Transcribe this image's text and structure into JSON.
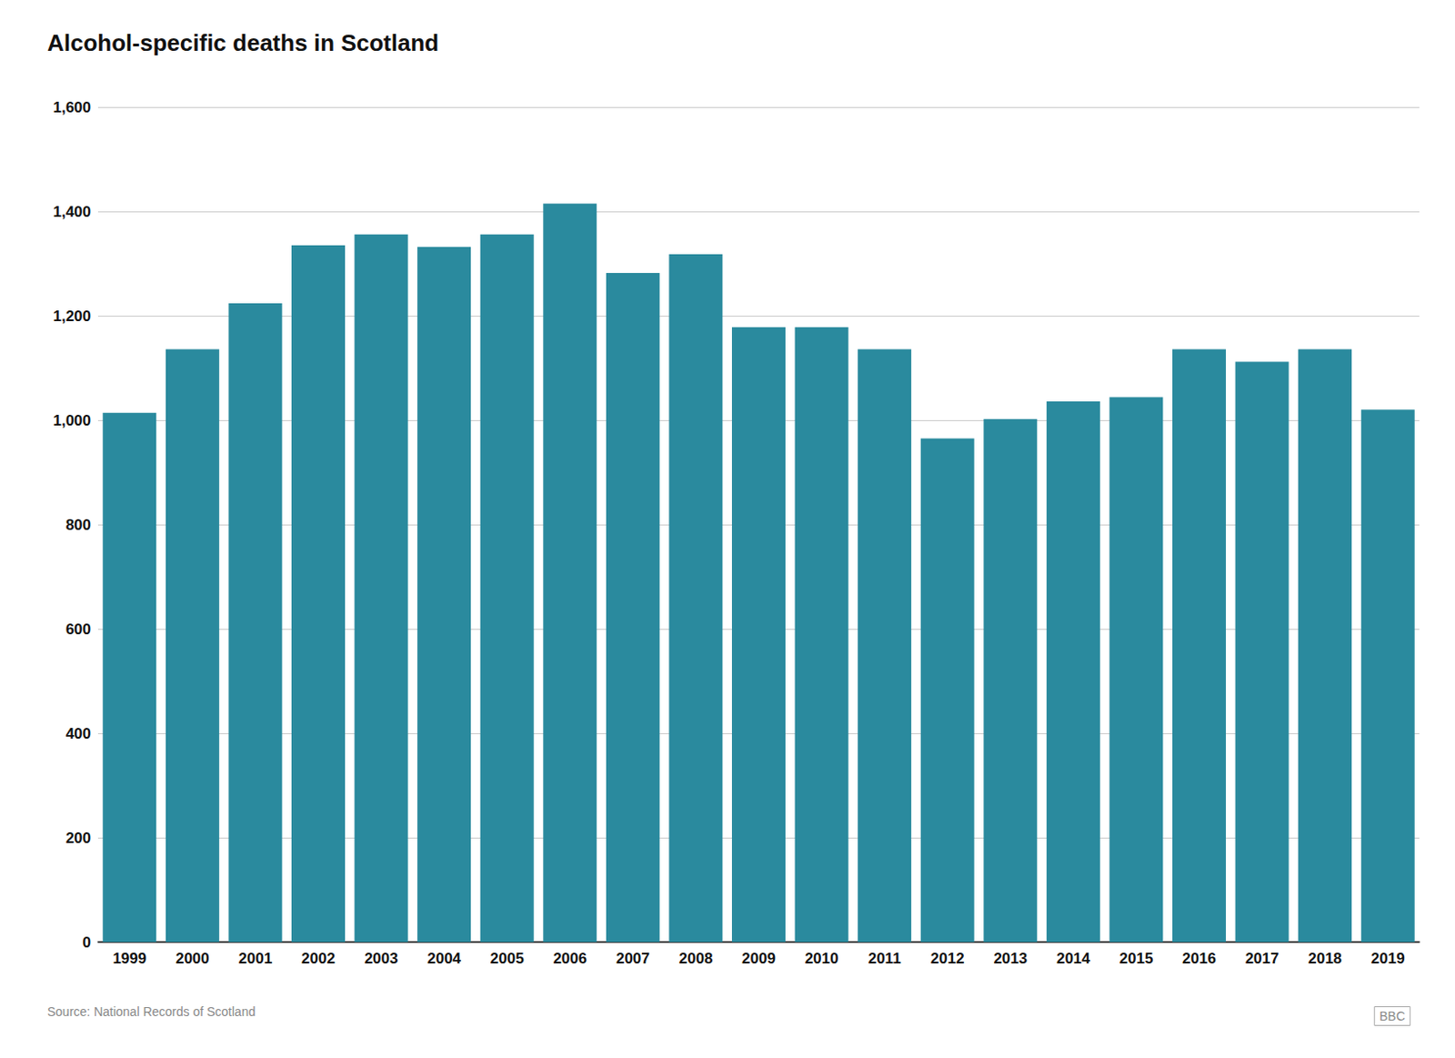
{
  "chart_data": {
    "type": "bar",
    "title": "Alcohol-specific deaths in Scotland",
    "annotations": [
      "Source: National Records of Scotland",
      "BBC"
    ],
    "categories": [
      "1999",
      "2000",
      "2001",
      "2002",
      "2003",
      "2004",
      "2005",
      "2006",
      "2007",
      "2008",
      "2009",
      "2010",
      "2011",
      "2012",
      "2013",
      "2014",
      "2015",
      "2016",
      "2017",
      "2018",
      "2019"
    ],
    "values": [
      1014,
      1136,
      1224,
      1335,
      1356,
      1332,
      1356,
      1415,
      1282,
      1318,
      1178,
      1178,
      1136,
      965,
      1002,
      1036,
      1044,
      1136,
      1112,
      1136,
      1020
    ],
    "color": "#2a8a9e",
    "ylim": [
      0,
      1600
    ],
    "yticks": [
      0,
      200,
      400,
      600,
      800,
      {
        "value": 1000,
        "label": "1,000"
      },
      {
        "value": 1200,
        "label": "1,200"
      },
      {
        "value": 1400,
        "label": "1,400"
      },
      {
        "value": 1600,
        "label": "1,600"
      }
    ],
    "grid": true
  }
}
